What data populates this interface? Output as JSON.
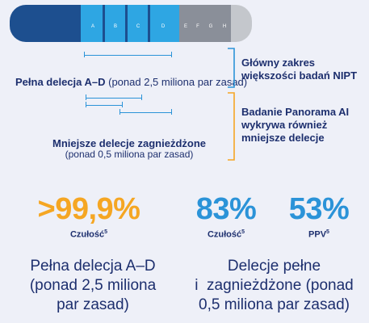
{
  "chromosome": {
    "bands": [
      "A",
      "B",
      "C",
      "D",
      "E",
      "F",
      "G",
      "H"
    ],
    "colors": {
      "dark_blue": "#1d4f8f",
      "light_blue": "#2ea6e3",
      "gray": "#8a8f99",
      "light_gray": "#c4c7cc"
    }
  },
  "labels": {
    "full_deletion": "Pełna delecja A–D",
    "full_deletion_note": " (ponad 2,5 miliona par zasad)",
    "nested_deletions_title": "Mniejsze delecje zagnieżdżone",
    "nested_deletions_note": "(ponad 0,5 miliona par zasad)"
  },
  "brackets": {
    "nipt_line1": "Główny zakres",
    "nipt_line2": "większości badań NIPT",
    "nipt_color": "#2b93d8",
    "panorama_line1": "Badanie Panorama AI",
    "panorama_line2": "wykrywa również",
    "panorama_line3": "mniejsze delecje",
    "panorama_color": "#f5a623"
  },
  "stats": [
    {
      "value": ">99,9%",
      "label": "Czułość",
      "sup": "5",
      "color": "#f5a623"
    },
    {
      "value": "83%",
      "label": "Czułość",
      "sup": "5",
      "color": "#2b93d8"
    },
    {
      "value": "53%",
      "label": "PPV",
      "sup": "5",
      "color": "#2b93d8"
    }
  ],
  "descriptions": {
    "left_line1": "Pełna delecja A–D",
    "left_line2": "(ponad 2,5 miliona",
    "left_line3": "par zasad)",
    "right_line1": "Delecje pełne",
    "right_line2": "i  zagnieżdżone (ponad",
    "right_line3": "0,5 miliona par zasad)"
  }
}
